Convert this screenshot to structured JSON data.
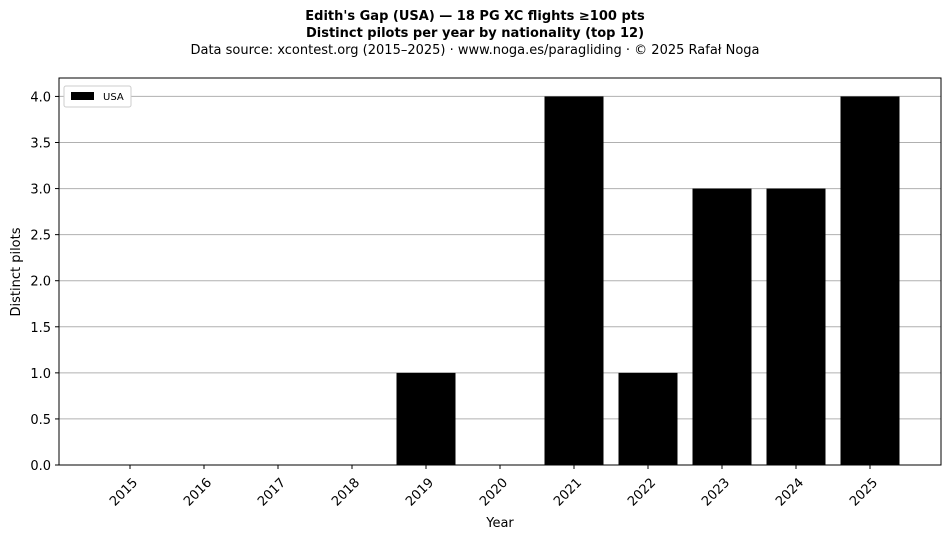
{
  "chart_data": {
    "type": "bar",
    "title": "Edith's Gap (USA)  —  18 PG XC flights ≥100 pts",
    "subtitle": "Distinct pilots per year by nationality (top 12)",
    "source": "Data source: xcontest.org (2015–2025)  ·  www.noga.es/paragliding  ·  © 2025 Rafał Noga",
    "xlabel": "Year",
    "ylabel": "Distinct pilots",
    "categories": [
      "2015",
      "2016",
      "2017",
      "2018",
      "2019",
      "2020",
      "2021",
      "2022",
      "2023",
      "2024",
      "2025"
    ],
    "series": [
      {
        "name": "USA",
        "color": "#000000",
        "values": [
          0,
          0,
          0,
          0,
          1,
          0,
          4,
          1,
          3,
          3,
          4
        ]
      }
    ],
    "ylim": [
      0,
      4.2
    ],
    "yticks": [
      "0.0",
      "0.5",
      "1.0",
      "1.5",
      "2.0",
      "2.5",
      "3.0",
      "3.5",
      "4.0"
    ],
    "grid": "y",
    "legend_position": "top-left"
  }
}
